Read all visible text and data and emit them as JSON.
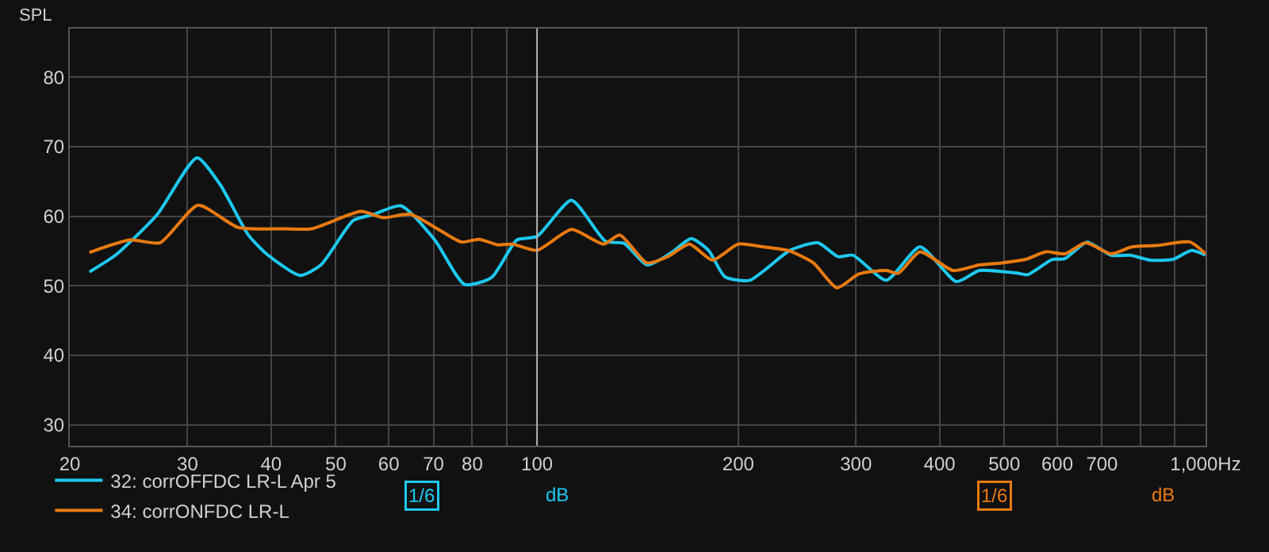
{
  "chart_data": {
    "type": "line",
    "ylabel": "SPL",
    "log": "x",
    "xlim": [
      20,
      1000
    ],
    "ylim": [
      27,
      87
    ],
    "xticks": [
      20,
      30,
      40,
      50,
      60,
      70,
      80,
      {
        "value": 90,
        "label": null
      },
      100,
      200,
      300,
      400,
      500,
      600,
      700,
      {
        "value": 800,
        "label": null
      },
      {
        "value": 900,
        "label": null
      },
      {
        "value": 1000,
        "label": "1,000Hz"
      }
    ],
    "yticks": [
      30,
      40,
      50,
      60,
      70,
      80
    ],
    "grid": true,
    "legend": "bottom",
    "marker": "none",
    "line_style": "solid",
    "ref_lines": [
      {
        "axis": "x",
        "value": 100,
        "label": null,
        "color": "#b0b0b0"
      }
    ],
    "annotations": [
      "1/6",
      "dB",
      "1/6",
      "dB"
    ],
    "series": [
      {
        "name": "32: corrOFFDC LR-L Apr 5",
        "color": "#1ec8f0",
        "x": [
          21.4,
          23.4,
          27.0,
          31.0,
          33.6,
          37.0,
          39.6,
          44.2,
          47.5,
          53.1,
          56.7,
          62.6,
          70.3,
          77.9,
          85.5,
          93.3,
          100,
          112.6,
          126.6,
          135,
          146.2,
          159,
          170,
          180.5,
          191,
          208,
          239,
          263,
          282,
          297,
          333,
          374,
          424,
          459,
          524,
          542,
          590,
          616,
          665,
          722,
          771,
          826,
          893,
          953,
          1000
        ],
        "values": [
          52.0,
          54.4,
          60.2,
          68.4,
          64.5,
          57.3,
          54.4,
          51.5,
          53.0,
          59.4,
          60.2,
          61.5,
          56.6,
          50.2,
          51.2,
          56.6,
          57.1,
          62.3,
          56.4,
          56.1,
          53.0,
          54.8,
          56.8,
          55.1,
          51.3,
          50.8,
          55.1,
          56.2,
          54.2,
          54.4,
          50.8,
          55.6,
          50.6,
          52.2,
          51.8,
          51.6,
          53.8,
          53.9,
          56.3,
          54.4,
          54.4,
          53.7,
          53.8,
          55.1,
          54.4
        ]
      },
      {
        "name": "34: corrONFDC LR-L",
        "color": "#e87a10",
        "x": [
          21.4,
          24.6,
          27.3,
          31.1,
          35.7,
          41.9,
          46.0,
          54.5,
          58.9,
          64.6,
          71.5,
          77.0,
          81.9,
          87.3,
          91.8,
          100,
          112.6,
          125.7,
          133,
          146,
          157,
          169,
          183,
          200,
          218,
          239,
          259,
          281,
          303,
          333,
          347,
          374,
          419,
          459,
          496,
          538,
          577,
          616,
          662,
          722,
          776,
          845,
          948,
          1000
        ],
        "values": [
          54.8,
          56.6,
          56.2,
          61.6,
          58.4,
          58.2,
          58.2,
          60.7,
          59.8,
          60.3,
          58.0,
          56.3,
          56.7,
          55.9,
          56.0,
          55.1,
          58.1,
          56.0,
          57.3,
          53.3,
          54.2,
          56.0,
          53.7,
          56.0,
          55.6,
          55.0,
          53.3,
          49.7,
          51.7,
          52.2,
          51.8,
          54.9,
          52.2,
          53.0,
          53.3,
          53.8,
          54.9,
          54.6,
          56.2,
          54.6,
          55.6,
          55.8,
          56.3,
          54.6
        ]
      }
    ]
  }
}
